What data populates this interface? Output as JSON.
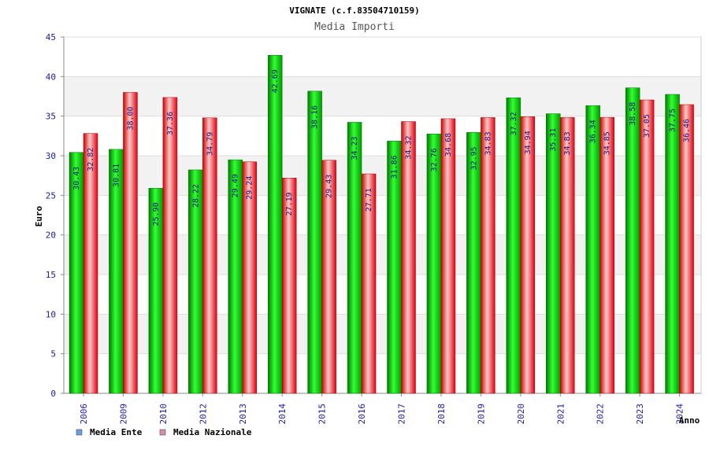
{
  "chart_data": {
    "type": "bar",
    "title": "VIGNATE (c.f.83504710159)",
    "subtitle": "Media Importi",
    "ylabel": "Euro",
    "xlabel": "Anno",
    "ylim": [
      0,
      45
    ],
    "yticks": [
      0,
      5,
      10,
      15,
      20,
      25,
      30,
      35,
      40,
      45
    ],
    "grid": true,
    "legend_position": "bottom-left",
    "categories": [
      "2006",
      "2009",
      "2010",
      "2012",
      "2013",
      "2014",
      "2015",
      "2016",
      "2017",
      "2018",
      "2019",
      "2020",
      "2021",
      "2022",
      "2023",
      "2024"
    ],
    "series": [
      {
        "name": "Media Ente",
        "legend_color": "#6aa0e0",
        "bar_color": "#00cc00",
        "values": [
          30.43,
          30.81,
          25.9,
          28.22,
          29.49,
          42.69,
          38.16,
          34.23,
          31.86,
          32.76,
          32.95,
          37.32,
          35.31,
          36.34,
          38.58,
          37.75
        ],
        "labels": [
          "30.43",
          "30.81",
          "25.90",
          "28.22",
          "29.49",
          "42.69",
          "38.16",
          "34.23",
          "31.86",
          "32.76",
          "32.95",
          "37.32",
          "35.31",
          "36.34",
          "38.58",
          "37.75"
        ]
      },
      {
        "name": "Media Nazionale",
        "legend_color": "#d98cb0",
        "bar_color": "#ee2233",
        "values": [
          32.82,
          38.0,
          37.36,
          34.79,
          29.24,
          27.19,
          29.43,
          27.71,
          34.32,
          34.68,
          34.83,
          34.94,
          34.83,
          34.85,
          37.05,
          36.46
        ],
        "labels": [
          "32.82",
          "38.00",
          "37.36",
          "34.79",
          "29.24",
          "27.19",
          "29.43",
          "27.71",
          "34.32",
          "34.68",
          "34.83",
          "34.94",
          "34.83",
          "34.85",
          "37.05",
          "36.46"
        ]
      }
    ]
  }
}
